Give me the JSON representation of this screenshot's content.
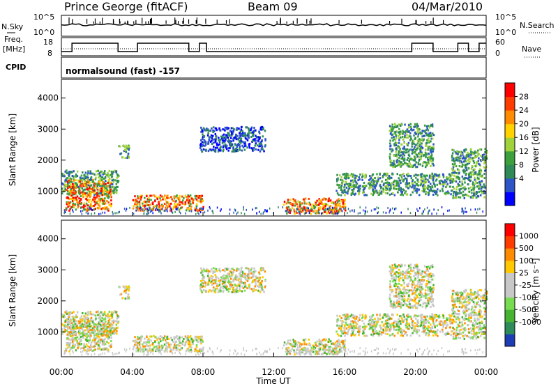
{
  "header": {
    "station": "Prince George (fitACF)",
    "beam": "Beam 09",
    "date": "04/Mar/2010"
  },
  "top_panels": {
    "nsky_label": "N.Sky",
    "nsearch_label": "N.Search",
    "count_ticks": [
      "10^5",
      "10^0"
    ],
    "freq_label": [
      "Freq.",
      "[MHz]"
    ],
    "freq_ticks": [
      "18",
      "8"
    ],
    "nave_label": "Nave",
    "nave_ticks": [
      "60",
      "0"
    ],
    "cpid_label": "CPID",
    "cpid_text": "normalsound (fast) -157"
  },
  "chart_data": [
    {
      "type": "heatmap",
      "name": "power",
      "ylabel": "Slant Range [km]",
      "ylim": [
        200,
        4600
      ],
      "yticks": [
        "4000",
        "3000",
        "2000",
        "1000"
      ],
      "colorbar_label": "Power [dB]",
      "colorbar_ticks": [
        "28",
        "24",
        "20",
        "16",
        "12",
        "8",
        "4"
      ],
      "colorbar_colors": [
        "#0000ff",
        "#2d55c8",
        "#2e8b57",
        "#3ca03c",
        "#a0d23c",
        "#ffd200",
        "#ff8c00",
        "#ff3c00",
        "#ff0000"
      ],
      "regions": [
        {
          "t": [
            0.0,
            3.2
          ],
          "r": [
            900,
            1700
          ],
          "level": "mid"
        },
        {
          "t": [
            0.2,
            2.8
          ],
          "r": [
            400,
            1400
          ],
          "level": "high"
        },
        {
          "t": [
            3.2,
            3.8
          ],
          "r": [
            2100,
            2500
          ],
          "level": "mid"
        },
        {
          "t": [
            4.0,
            8.0
          ],
          "r": [
            400,
            900
          ],
          "level": "high"
        },
        {
          "t": [
            7.8,
            11.5
          ],
          "r": [
            2300,
            3100
          ],
          "level": "low"
        },
        {
          "t": [
            12.5,
            16.0
          ],
          "r": [
            300,
            800
          ],
          "level": "high"
        },
        {
          "t": [
            15.5,
            22.0
          ],
          "r": [
            900,
            1600
          ],
          "level": "mid"
        },
        {
          "t": [
            18.5,
            21.0
          ],
          "r": [
            1800,
            3200
          ],
          "level": "mid"
        },
        {
          "t": [
            22.0,
            24.0
          ],
          "r": [
            800,
            2400
          ],
          "level": "mid"
        }
      ]
    },
    {
      "type": "heatmap",
      "name": "velocity",
      "ylabel": "Slant Range [km]",
      "ylim": [
        200,
        4600
      ],
      "yticks": [
        "4000",
        "3000",
        "2000",
        "1000"
      ],
      "colorbar_label": "Velocity [m s^-1]",
      "colorbar_ticks": [
        "1000",
        "500",
        "100",
        "25",
        "-25",
        "-100",
        "-500",
        "-1000"
      ],
      "colorbar_colors": [
        "#1e3cb4",
        "#2d8c5a",
        "#46b432",
        "#78dc50",
        "#c8c8c8",
        "#c8c8c8",
        "#ffc800",
        "#ff8c00",
        "#ff3c00",
        "#ff0000"
      ],
      "xticks": [
        "00:00",
        "04:00",
        "08:00",
        "12:00",
        "16:00",
        "20:00",
        "00:00"
      ],
      "xlabel": "Time UT"
    }
  ]
}
